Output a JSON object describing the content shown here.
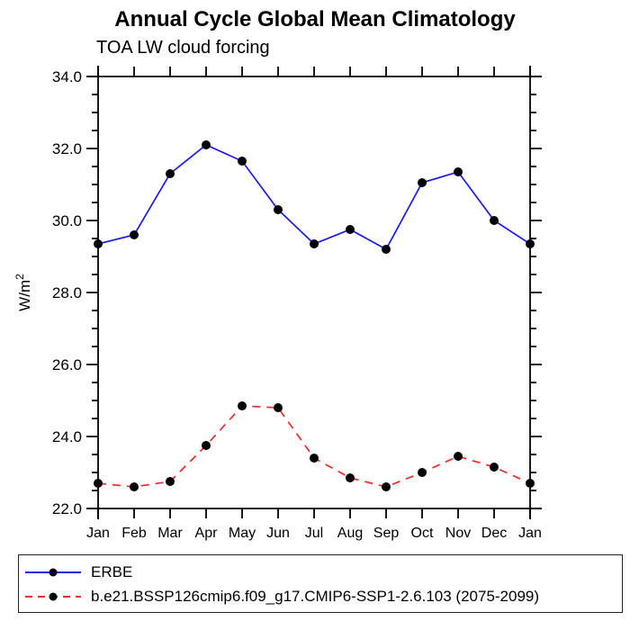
{
  "chart_data": {
    "type": "line",
    "title": "Annual Cycle Global Mean Climatology",
    "subtitle": "TOA LW cloud forcing",
    "xlabel": "",
    "ylabel": "W/m²",
    "categories": [
      "Jan",
      "Feb",
      "Mar",
      "Apr",
      "May",
      "Jun",
      "Jul",
      "Aug",
      "Sep",
      "Oct",
      "Nov",
      "Dec",
      "Jan"
    ],
    "series": [
      {
        "name": "ERBE",
        "color": "#1a1aee",
        "line_style": "solid",
        "marker": "circle",
        "marker_color": "#000000",
        "values": [
          29.35,
          29.6,
          31.3,
          32.1,
          31.65,
          30.3,
          29.35,
          29.75,
          29.2,
          31.05,
          31.35,
          30.0,
          29.35
        ]
      },
      {
        "name": "b.e21.BSSP126cmip6.f09_g17.CMIP6-SSP1-2.6.103 (2075-2099)",
        "color": "#ee2a2a",
        "line_style": "dashed",
        "marker": "circle",
        "marker_color": "#000000",
        "values": [
          22.7,
          22.6,
          22.75,
          23.75,
          24.85,
          24.8,
          23.4,
          22.85,
          22.6,
          23.0,
          23.45,
          23.15,
          22.7
        ]
      }
    ],
    "ylim": [
      22.0,
      34.0
    ],
    "ytick_step": 2.0,
    "yminor_step": 0.5,
    "yticks": [
      "22.0",
      "24.0",
      "26.0",
      "28.0",
      "30.0",
      "32.0",
      "34.0"
    ],
    "grid": false,
    "legend_position": "bottom",
    "axis_color": "#000000"
  }
}
